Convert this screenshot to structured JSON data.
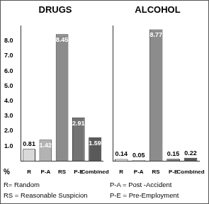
{
  "chart_data": [
    {
      "type": "bar",
      "title": "DRUGS",
      "categories": [
        "R",
        "P-A",
        "RS",
        "P-E",
        "Combined"
      ],
      "values": [
        0.81,
        1.42,
        8.45,
        2.91,
        1.59
      ],
      "colors": [
        "#d9d9d9",
        "#b3b3b3",
        "#8c8c8c",
        "#737373",
        "#595959"
      ],
      "ylim": [
        0,
        9
      ],
      "yticks": [
        {
          "value": 1,
          "label": "1.0"
        },
        {
          "value": 2,
          "label": "2.0"
        },
        {
          "value": 3,
          "label": "3.0"
        },
        {
          "value": 4,
          "label": "4.0"
        },
        {
          "value": 5,
          "label": "5.0"
        },
        {
          "value": 6,
          "label": "6.0"
        },
        {
          "value": 7,
          "label": "7.0"
        },
        {
          "value": 8,
          "label": "8.0"
        }
      ],
      "ylabel": "%",
      "data_labels": true,
      "grid": false
    },
    {
      "type": "bar",
      "title": "ALCOHOL",
      "categories": [
        "R",
        "P-A",
        "RS",
        "P-E",
        "Combined"
      ],
      "values": [
        0.14,
        0.05,
        8.77,
        0.15,
        0.22
      ],
      "colors": [
        "#d9d9d9",
        "#b3b3b3",
        "#8c8c8c",
        "#737373",
        "#595959"
      ],
      "ylim": [
        0,
        9
      ],
      "tick_labels": "x",
      "data_labels": true,
      "grid": false
    }
  ],
  "footnotes": [
    "R= Random",
    "P-A = Post -Accident",
    "RS = Reasonable Suspicion",
    "P-E = Pre-Employment"
  ]
}
